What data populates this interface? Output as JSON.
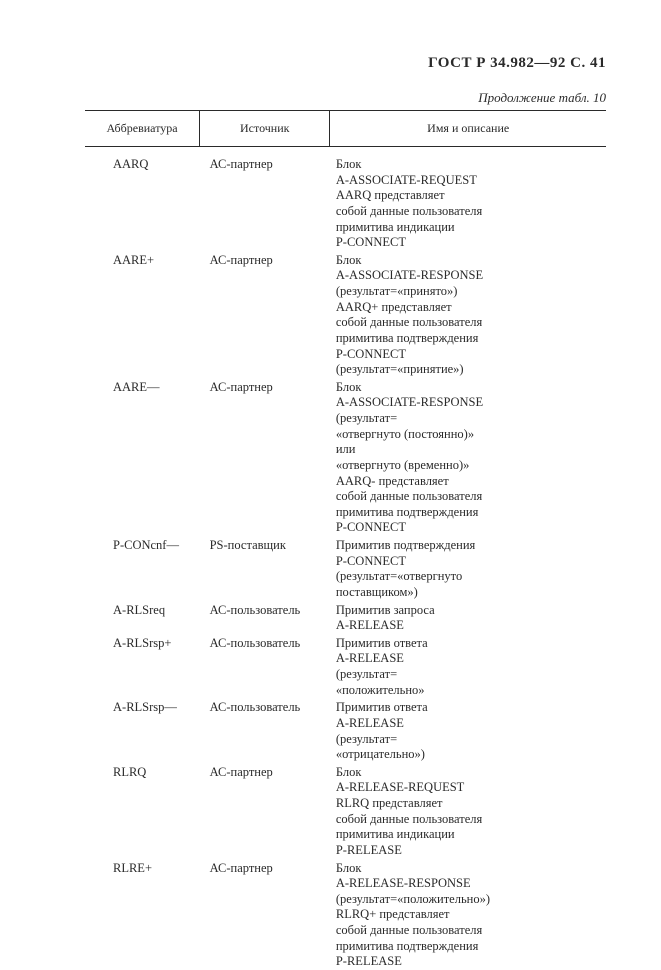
{
  "header": "ГОСТ Р 34.982—92 С. 41",
  "caption": "Продолжение табл. 10",
  "columns": {
    "abbr": "Аббревиатура",
    "src": "Источник",
    "desc": "Имя и описание"
  },
  "rows": [
    {
      "abbr": "AARQ",
      "src": "АС-партнер",
      "desc": "Блок\nA-ASSOCIATE-REQUEST\nAARQ представляет\nсобой данные пользователя\nпримитива индикации\nP-CONNECT"
    },
    {
      "abbr": "AARE+",
      "src": "АС-партнер",
      "desc": "Блок\nA-ASSOCIATE-RESPONSE\n(результат=«принято»)\nAARQ+ представляет\nсобой данные пользователя\nпримитива подтверждения\nP-CONNECT\n(результат=«принятие»)"
    },
    {
      "abbr": "AARE—",
      "src": "АС-партнер",
      "desc": "Блок\nA-ASSOCIATE-RESPONSE\n(результат=\n«отвергнуто (постоянно)»\nили\n«отвергнуто (временно)»\nAARQ- представляет\nсобой данные пользователя\nпримитива подтверждения\nP-CONNECT"
    },
    {
      "abbr": "P-CONcnf—",
      "src": "PS-поставщик",
      "desc": "Примитив подтверждения\nP-CONNECT\n(результат=«отвергнуто\nпоставщиком»)"
    },
    {
      "abbr": "A-RLSreq",
      "src": "АС-пользователь",
      "desc": "Примитив запроса\nA-RELEASE"
    },
    {
      "abbr": "A-RLSrsp+",
      "src": "АС-пользователь",
      "desc": "Примитив ответа\nA-RELEASE\n(результат=\n«положительно»"
    },
    {
      "abbr": "A-RLSrsp—",
      "src": "АС-пользователь",
      "desc": "Примитив ответа\nA-RELEASE\n(результат=\n«отрицательно»)"
    },
    {
      "abbr": "RLRQ",
      "src": "АС-партнер",
      "desc": "Блок\nA-RELEASE-REQUEST\nRLRQ представляет\nсобой данные пользователя\nпримитива индикации\nP-RELEASE"
    },
    {
      "abbr": "RLRE+",
      "src": "АС-партнер",
      "desc": "Блок\nA-RELEASE-RESPONSE\n(результат=«положительно»)\nRLRQ+ представляет\nсобой данные пользователя\nпримитива подтверждения\nP-RELEASE"
    }
  ]
}
